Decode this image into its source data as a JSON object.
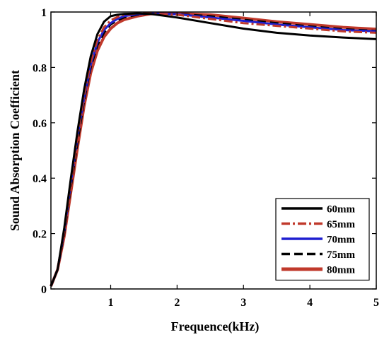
{
  "chart_data": {
    "type": "line",
    "title": "",
    "xlabel": "Frequence(kHz)",
    "ylabel": "Sound Absorption Coefficient",
    "xlim": [
      0.1,
      5
    ],
    "ylim": [
      0,
      1
    ],
    "xticks": [
      1,
      2,
      3,
      4,
      5
    ],
    "yticks": [
      0,
      0.2,
      0.4,
      0.6,
      0.8,
      1
    ],
    "xtick_labels": [
      "1",
      "2",
      "3",
      "4",
      "5"
    ],
    "ytick_labels": [
      "0",
      "0.2",
      "0.4",
      "0.6",
      "0.8",
      "1"
    ],
    "grid": false,
    "legend_position": "bottom-right",
    "series": [
      {
        "name": "60mm",
        "color": "#000000",
        "dash": "solid",
        "x": [
          0.1,
          0.2,
          0.3,
          0.4,
          0.5,
          0.6,
          0.7,
          0.8,
          0.9,
          1.0,
          1.1,
          1.2,
          1.4,
          1.6,
          2.0,
          2.5,
          3.0,
          3.5,
          4.0,
          4.5,
          5.0
        ],
        "y": [
          0.01,
          0.07,
          0.22,
          0.4,
          0.57,
          0.72,
          0.84,
          0.92,
          0.965,
          0.985,
          0.99,
          0.993,
          0.995,
          0.993,
          0.98,
          0.96,
          0.94,
          0.925,
          0.915,
          0.908,
          0.902
        ]
      },
      {
        "name": "65mm",
        "color": "#c0392b",
        "dash": "dashdot",
        "x": [
          0.1,
          0.2,
          0.3,
          0.4,
          0.5,
          0.6,
          0.7,
          0.8,
          0.9,
          1.0,
          1.1,
          1.2,
          1.4,
          1.6,
          2.0,
          2.5,
          3.0,
          3.5,
          4.0,
          4.5,
          5.0
        ],
        "y": [
          0.01,
          0.07,
          0.21,
          0.38,
          0.55,
          0.7,
          0.82,
          0.9,
          0.945,
          0.97,
          0.982,
          0.99,
          0.995,
          0.995,
          0.99,
          0.975,
          0.96,
          0.95,
          0.94,
          0.93,
          0.925
        ]
      },
      {
        "name": "70mm",
        "color": "#1f1fd0",
        "dash": "solid",
        "x": [
          0.1,
          0.2,
          0.3,
          0.4,
          0.5,
          0.6,
          0.7,
          0.8,
          0.9,
          1.0,
          1.1,
          1.2,
          1.4,
          1.6,
          2.0,
          2.5,
          3.0,
          3.5,
          4.0,
          4.5,
          5.0
        ],
        "y": [
          0.01,
          0.07,
          0.21,
          0.38,
          0.55,
          0.69,
          0.81,
          0.89,
          0.935,
          0.96,
          0.975,
          0.985,
          0.992,
          0.995,
          0.992,
          0.98,
          0.968,
          0.955,
          0.945,
          0.935,
          0.93
        ]
      },
      {
        "name": "75mm",
        "color": "#000000",
        "dash": "dashed",
        "x": [
          0.1,
          0.2,
          0.3,
          0.4,
          0.5,
          0.6,
          0.7,
          0.8,
          0.9,
          1.0,
          1.1,
          1.2,
          1.4,
          1.6,
          2.0,
          2.5,
          3.0,
          3.5,
          4.0,
          4.5,
          5.0
        ],
        "y": [
          0.01,
          0.07,
          0.2,
          0.37,
          0.53,
          0.68,
          0.8,
          0.88,
          0.925,
          0.955,
          0.97,
          0.98,
          0.99,
          0.995,
          0.993,
          0.985,
          0.972,
          0.96,
          0.948,
          0.938,
          0.932
        ]
      },
      {
        "name": "80mm",
        "color": "#c0392b",
        "dash": "solid",
        "x": [
          0.1,
          0.2,
          0.3,
          0.4,
          0.5,
          0.6,
          0.7,
          0.8,
          0.9,
          1.0,
          1.1,
          1.2,
          1.4,
          1.6,
          2.0,
          2.5,
          3.0,
          3.5,
          4.0,
          4.5,
          5.0
        ],
        "y": [
          0.01,
          0.07,
          0.19,
          0.35,
          0.51,
          0.66,
          0.78,
          0.86,
          0.91,
          0.94,
          0.96,
          0.972,
          0.985,
          0.993,
          0.995,
          0.99,
          0.978,
          0.965,
          0.955,
          0.945,
          0.938
        ]
      }
    ]
  }
}
